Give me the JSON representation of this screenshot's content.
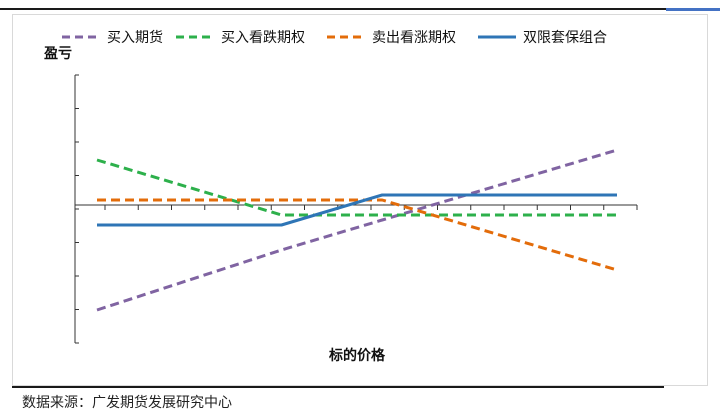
{
  "chart_data": {
    "type": "line",
    "ylabel": "盈亏",
    "xlabel": "标的价格",
    "grid": false,
    "legend_position": "top",
    "x": [
      0,
      5.5,
      8.5,
      12,
      15.5
    ],
    "series": [
      {
        "name": "买入期货",
        "color": "#8064a2",
        "dash": "dashed",
        "values": [
          -10.5,
          -4.5,
          -1.5,
          2,
          5.5
        ]
      },
      {
        "name": "买入看跌期权",
        "color": "#2db04b",
        "dash": "dashed",
        "values": [
          4.5,
          -1,
          -1,
          -1,
          -1
        ]
      },
      {
        "name": "卖出看涨期权",
        "color": "#e36c0a",
        "dash": "dashed",
        "values": [
          0.5,
          0.5,
          0.5,
          -3,
          -6.5
        ]
      },
      {
        "name": "双限套保组合",
        "color": "#2e75b6",
        "dash": "solid",
        "values": [
          -2,
          -2,
          1,
          1,
          1
        ]
      }
    ],
    "xlim": [
      0,
      15.5
    ],
    "ylim": [
      -12,
      12
    ]
  },
  "source_note": "数据来源：广发期货发展研究中心"
}
